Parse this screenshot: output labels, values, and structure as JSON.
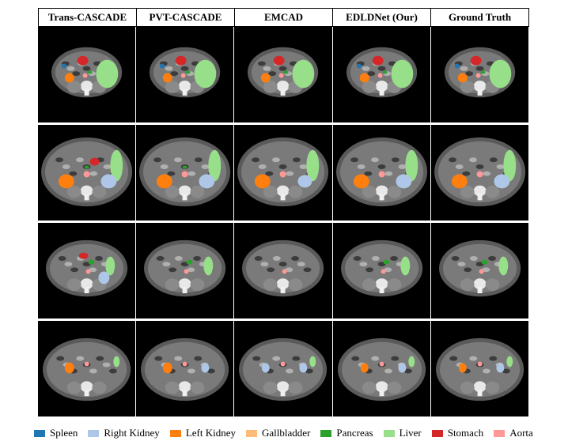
{
  "columns": [
    "Trans-CASCADE",
    "PVT-CASCADE",
    "EMCAD",
    "EDLDNet (Our)",
    "Ground Truth"
  ],
  "legend": [
    {
      "label": "Spleen",
      "color": "#1f77b4"
    },
    {
      "label": "Right Kidney",
      "color": "#aec7e8"
    },
    {
      "label": "Left Kidney",
      "color": "#ff7f0e"
    },
    {
      "label": "Gallbladder",
      "color": "#ffbb78"
    },
    {
      "label": "Pancreas",
      "color": "#2ca02c"
    },
    {
      "label": "Liver",
      "color": "#98df8a"
    },
    {
      "label": "Stomach",
      "color": "#d62728"
    },
    {
      "label": "Aorta",
      "color": "#ff9896"
    }
  ]
}
